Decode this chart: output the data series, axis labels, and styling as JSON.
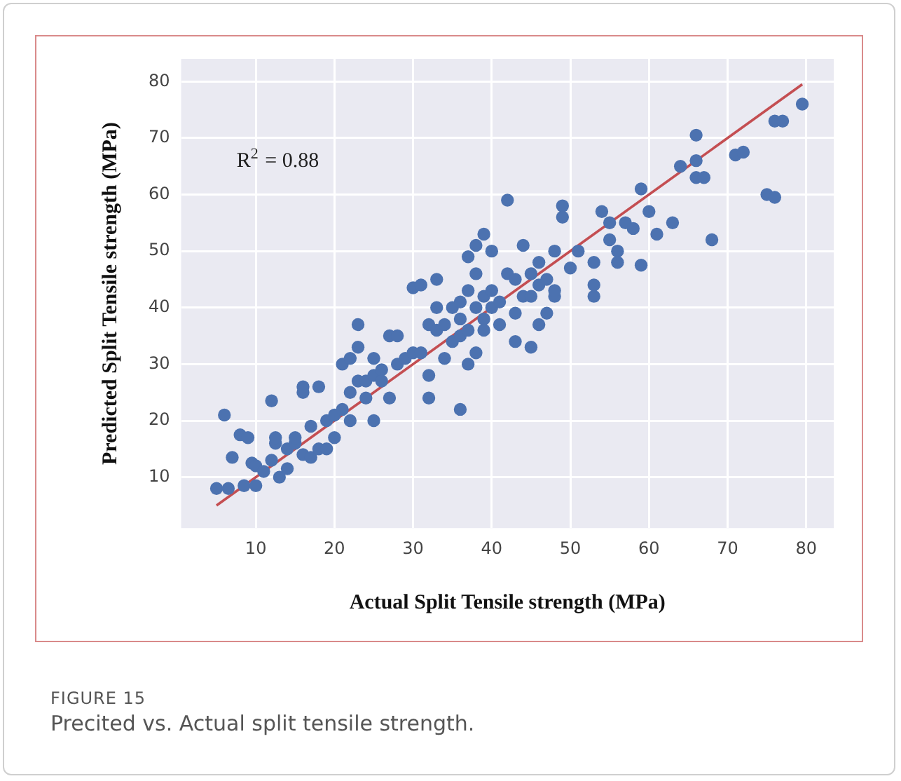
{
  "chart_data": {
    "type": "scatter",
    "xlabel": "Actual Split Tensile strength (MPa)",
    "ylabel": "Predicted Split Tensile strength (MPa)",
    "annotations": [
      "R$^{2}$ = 0.88",
      "FIGURE 15",
      "Precited vs. Actual split tensile strength."
    ],
    "xlim": [
      0.5,
      83.5
    ],
    "ylim": [
      1,
      84
    ],
    "xticks": [
      10,
      20,
      30,
      40,
      50,
      60,
      70,
      80
    ],
    "yticks": [
      10,
      20,
      30,
      40,
      50,
      60,
      70,
      80
    ],
    "grid": true,
    "marker": "circle",
    "legend": false,
    "series": [
      {
        "color": "#4c72b0",
        "x": [
          5,
          6.5,
          7,
          6,
          8,
          9,
          8.5,
          10,
          9.5,
          10,
          11,
          12,
          12,
          12.5,
          12.5,
          13,
          14,
          14,
          15,
          15,
          16,
          16,
          16,
          17,
          17,
          18,
          18,
          19,
          19,
          20,
          20,
          21,
          21,
          22,
          22,
          22,
          23,
          23,
          23,
          24,
          24,
          25,
          25,
          25,
          26,
          26,
          27,
          27,
          28,
          28,
          29,
          30,
          30,
          31,
          31,
          32,
          32,
          32,
          33,
          33,
          33,
          34,
          34,
          35,
          35,
          36,
          36,
          36,
          36,
          37,
          37,
          37,
          37,
          38,
          38,
          38,
          38,
          39,
          39,
          39,
          39,
          40,
          40,
          40,
          41,
          41,
          42,
          42,
          43,
          43,
          43,
          44,
          44,
          45,
          45,
          45,
          46,
          46,
          46,
          47,
          47,
          48,
          48,
          48,
          49,
          49,
          50,
          51,
          53,
          53,
          53,
          54,
          55,
          55,
          56,
          56,
          57,
          58,
          59,
          59,
          60,
          61,
          63,
          64,
          66,
          66,
          66,
          67,
          68,
          71,
          72,
          75,
          76,
          76,
          77,
          79.5
        ],
        "values": [
          8,
          8,
          13.5,
          21,
          17.5,
          17,
          8.5,
          8.5,
          12.5,
          12,
          11,
          13,
          23.5,
          16,
          17,
          10,
          11.5,
          15,
          16,
          17,
          25,
          26,
          14,
          13.5,
          19,
          26,
          15,
          15,
          20,
          21,
          17,
          22,
          30,
          25,
          20,
          31,
          27,
          33,
          37,
          24,
          27,
          20,
          28,
          31,
          27,
          29,
          24,
          35,
          35,
          30,
          31,
          43.5,
          32,
          32,
          44,
          37,
          28,
          24,
          36,
          40,
          45,
          37,
          31,
          40,
          34,
          35,
          38,
          41,
          22,
          36,
          43,
          49,
          30,
          40,
          46,
          51,
          32,
          38,
          42,
          53,
          36,
          43,
          40,
          50,
          41,
          37,
          59,
          46,
          45,
          39,
          34,
          51,
          42,
          42,
          46,
          33,
          37,
          48,
          44,
          39,
          45,
          42,
          43,
          50,
          58,
          56,
          47,
          50,
          44,
          48,
          42,
          57,
          55,
          52,
          50,
          48,
          55,
          54,
          61,
          47.5,
          57,
          53,
          55,
          65,
          70.5,
          66,
          63,
          63,
          52,
          67,
          67.5,
          60,
          59.5,
          73,
          73,
          76
        ]
      },
      {
        "type": "line",
        "color": "#c44e52",
        "marker": "none",
        "x": [
          5,
          79.5
        ],
        "values": [
          5,
          79.5
        ]
      }
    ]
  }
}
